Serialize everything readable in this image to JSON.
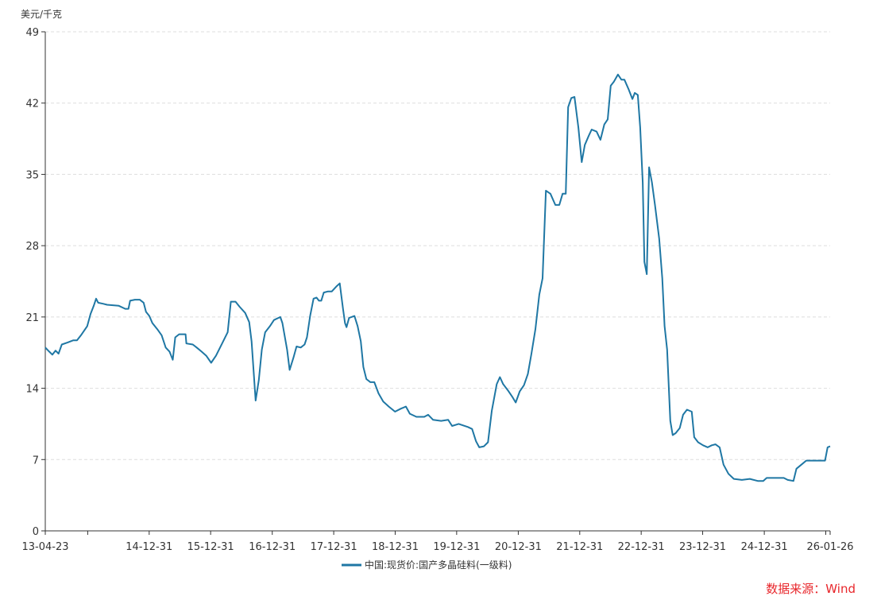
{
  "chart_data": {
    "type": "line",
    "title": "",
    "ylabel": "美元/千克",
    "xlabel": "",
    "ylim": [
      0,
      49
    ],
    "yticks": [
      0,
      7,
      14,
      21,
      28,
      35,
      42,
      49
    ],
    "xlim": [
      "2013-04-23",
      "2026-01-26"
    ],
    "xticks": [
      {
        "date": "2013-04-23",
        "label": "13-04-23"
      },
      {
        "date": "2013-12-31",
        "label": ""
      },
      {
        "date": "2014-12-31",
        "label": "14-12-31"
      },
      {
        "date": "2015-12-31",
        "label": "15-12-31"
      },
      {
        "date": "2016-12-31",
        "label": "16-12-31"
      },
      {
        "date": "2017-12-31",
        "label": "17-12-31"
      },
      {
        "date": "2018-12-31",
        "label": "18-12-31"
      },
      {
        "date": "2019-12-31",
        "label": "19-12-31"
      },
      {
        "date": "2020-12-31",
        "label": "20-12-31"
      },
      {
        "date": "2021-12-31",
        "label": "21-12-31"
      },
      {
        "date": "2022-12-31",
        "label": "22-12-31"
      },
      {
        "date": "2023-12-31",
        "label": "23-12-31"
      },
      {
        "date": "2024-12-31",
        "label": "24-12-31"
      },
      {
        "date": "2025-12-31",
        "label": ""
      },
      {
        "date": "2026-01-26",
        "label": "26-01-26"
      }
    ],
    "grid": "horizontal-dashed",
    "legend_position": "bottom",
    "series": [
      {
        "name": "中国:现货价:国产多晶硅料(一级料)",
        "color": "#1f77a4",
        "points": [
          [
            "2013-04-23",
            18.0
          ],
          [
            "2013-05-16",
            17.6
          ],
          [
            "2013-06-04",
            17.3
          ],
          [
            "2013-06-23",
            17.7
          ],
          [
            "2013-07-11",
            17.4
          ],
          [
            "2013-07-30",
            18.3
          ],
          [
            "2013-09-03",
            18.5
          ],
          [
            "2013-10-05",
            18.7
          ],
          [
            "2013-10-28",
            18.7
          ],
          [
            "2013-11-21",
            19.2
          ],
          [
            "2013-12-28",
            20.1
          ],
          [
            "2014-01-17",
            21.3
          ],
          [
            "2014-02-05",
            22.1
          ],
          [
            "2014-02-19",
            22.8
          ],
          [
            "2014-03-03",
            22.4
          ],
          [
            "2014-04-01",
            22.3
          ],
          [
            "2014-04-25",
            22.2
          ],
          [
            "2014-07-04",
            22.1
          ],
          [
            "2014-08-11",
            21.8
          ],
          [
            "2014-08-30",
            21.8
          ],
          [
            "2014-09-09",
            22.6
          ],
          [
            "2014-10-07",
            22.7
          ],
          [
            "2014-11-05",
            22.7
          ],
          [
            "2014-11-28",
            22.4
          ],
          [
            "2014-12-12",
            21.5
          ],
          [
            "2015-01-01",
            21.1
          ],
          [
            "2015-01-19",
            20.4
          ],
          [
            "2015-02-17",
            19.8
          ],
          [
            "2015-03-15",
            19.2
          ],
          [
            "2015-04-08",
            18.0
          ],
          [
            "2015-05-01",
            17.6
          ],
          [
            "2015-05-20",
            16.8
          ],
          [
            "2015-06-04",
            19.0
          ],
          [
            "2015-06-27",
            19.3
          ],
          [
            "2015-08-04",
            19.3
          ],
          [
            "2015-08-09",
            18.4
          ],
          [
            "2015-09-16",
            18.3
          ],
          [
            "2015-10-09",
            18.0
          ],
          [
            "2015-11-07",
            17.6
          ],
          [
            "2015-12-05",
            17.2
          ],
          [
            "2016-01-03",
            16.5
          ],
          [
            "2016-02-01",
            17.2
          ],
          [
            "2016-03-08",
            18.4
          ],
          [
            "2016-04-10",
            19.5
          ],
          [
            "2016-04-29",
            22.5
          ],
          [
            "2016-05-27",
            22.5
          ],
          [
            "2016-06-20",
            22.0
          ],
          [
            "2016-07-23",
            21.4
          ],
          [
            "2016-08-16",
            20.5
          ],
          [
            "2016-08-30",
            18.6
          ],
          [
            "2016-09-23",
            12.8
          ],
          [
            "2016-10-12",
            14.8
          ],
          [
            "2016-10-30",
            17.8
          ],
          [
            "2016-11-19",
            19.5
          ],
          [
            "2016-12-17",
            20.1
          ],
          [
            "2017-01-10",
            20.7
          ],
          [
            "2017-02-17",
            21.0
          ],
          [
            "2017-03-01",
            20.4
          ],
          [
            "2017-03-29",
            17.8
          ],
          [
            "2017-04-13",
            15.8
          ],
          [
            "2017-05-06",
            17.0
          ],
          [
            "2017-05-24",
            18.1
          ],
          [
            "2017-06-18",
            18.0
          ],
          [
            "2017-07-11",
            18.3
          ],
          [
            "2017-07-25",
            19.0
          ],
          [
            "2017-08-13",
            21.1
          ],
          [
            "2017-09-02",
            22.8
          ],
          [
            "2017-09-20",
            22.9
          ],
          [
            "2017-10-04",
            22.6
          ],
          [
            "2017-10-18",
            22.6
          ],
          [
            "2017-11-02",
            23.4
          ],
          [
            "2017-11-25",
            23.5
          ],
          [
            "2017-12-19",
            23.5
          ],
          [
            "2018-01-16",
            24.0
          ],
          [
            "2018-02-05",
            24.3
          ],
          [
            "2018-02-24",
            21.8
          ],
          [
            "2018-03-08",
            20.4
          ],
          [
            "2018-03-17",
            20.0
          ],
          [
            "2018-04-01",
            20.9
          ],
          [
            "2018-05-03",
            21.1
          ],
          [
            "2018-05-22",
            20.1
          ],
          [
            "2018-06-10",
            18.6
          ],
          [
            "2018-06-25",
            16.1
          ],
          [
            "2018-07-13",
            14.9
          ],
          [
            "2018-08-06",
            14.6
          ],
          [
            "2018-08-29",
            14.6
          ],
          [
            "2018-09-23",
            13.5
          ],
          [
            "2018-10-21",
            12.7
          ],
          [
            "2018-11-23",
            12.2
          ],
          [
            "2018-12-30",
            11.7
          ],
          [
            "2019-02-03",
            12.0
          ],
          [
            "2019-03-05",
            12.2
          ],
          [
            "2019-03-28",
            11.5
          ],
          [
            "2019-05-06",
            11.2
          ],
          [
            "2019-06-22",
            11.2
          ],
          [
            "2019-07-15",
            11.4
          ],
          [
            "2019-08-13",
            10.9
          ],
          [
            "2019-09-30",
            10.8
          ],
          [
            "2019-11-11",
            10.9
          ],
          [
            "2019-12-04",
            10.3
          ],
          [
            "2020-01-12",
            10.5
          ],
          [
            "2020-03-07",
            10.2
          ],
          [
            "2020-04-01",
            10.0
          ],
          [
            "2020-04-24",
            8.8
          ],
          [
            "2020-05-13",
            8.2
          ],
          [
            "2020-06-10",
            8.3
          ],
          [
            "2020-07-04",
            8.7
          ],
          [
            "2020-07-27",
            11.8
          ],
          [
            "2020-08-25",
            14.4
          ],
          [
            "2020-09-13",
            15.1
          ],
          [
            "2020-10-02",
            14.4
          ],
          [
            "2020-10-30",
            13.8
          ],
          [
            "2020-11-28",
            13.1
          ],
          [
            "2020-12-16",
            12.6
          ],
          [
            "2021-01-09",
            13.7
          ],
          [
            "2021-02-03",
            14.3
          ],
          [
            "2021-02-26",
            15.4
          ],
          [
            "2021-03-19",
            17.4
          ],
          [
            "2021-04-12",
            19.8
          ],
          [
            "2021-05-05",
            23.2
          ],
          [
            "2021-05-24",
            24.8
          ],
          [
            "2021-06-13",
            33.4
          ],
          [
            "2021-07-10",
            33.1
          ],
          [
            "2021-08-08",
            32.0
          ],
          [
            "2021-09-01",
            32.0
          ],
          [
            "2021-09-20",
            33.1
          ],
          [
            "2021-10-09",
            33.1
          ],
          [
            "2021-10-23",
            41.6
          ],
          [
            "2021-11-11",
            42.5
          ],
          [
            "2021-11-30",
            42.6
          ],
          [
            "2021-12-23",
            39.6
          ],
          [
            "2022-01-12",
            36.2
          ],
          [
            "2022-01-30",
            37.9
          ],
          [
            "2022-02-23",
            38.8
          ],
          [
            "2022-03-12",
            39.4
          ],
          [
            "2022-04-10",
            39.2
          ],
          [
            "2022-05-03",
            38.4
          ],
          [
            "2022-05-26",
            39.9
          ],
          [
            "2022-06-15",
            40.4
          ],
          [
            "2022-07-03",
            43.7
          ],
          [
            "2022-07-22",
            44.1
          ],
          [
            "2022-08-15",
            44.8
          ],
          [
            "2022-09-04",
            44.3
          ],
          [
            "2022-09-22",
            44.3
          ],
          [
            "2022-10-16",
            43.4
          ],
          [
            "2022-11-09",
            42.4
          ],
          [
            "2022-11-23",
            43.0
          ],
          [
            "2022-12-11",
            42.8
          ],
          [
            "2022-12-25",
            39.6
          ],
          [
            "2023-01-09",
            34.2
          ],
          [
            "2023-01-19",
            26.4
          ],
          [
            "2023-02-02",
            25.2
          ],
          [
            "2023-02-16",
            35.7
          ],
          [
            "2023-03-05",
            34.2
          ],
          [
            "2023-03-23",
            32.0
          ],
          [
            "2023-04-17",
            28.7
          ],
          [
            "2023-05-05",
            24.8
          ],
          [
            "2023-05-19",
            20.1
          ],
          [
            "2023-06-03",
            17.8
          ],
          [
            "2023-06-22",
            10.8
          ],
          [
            "2023-07-06",
            9.4
          ],
          [
            "2023-07-24",
            9.6
          ],
          [
            "2023-08-17",
            10.1
          ],
          [
            "2023-09-06",
            11.4
          ],
          [
            "2023-09-29",
            11.9
          ],
          [
            "2023-10-27",
            11.7
          ],
          [
            "2023-11-11",
            9.2
          ],
          [
            "2023-12-04",
            8.7
          ],
          [
            "2024-01-02",
            8.4
          ],
          [
            "2024-01-30",
            8.2
          ],
          [
            "2024-02-23",
            8.4
          ],
          [
            "2024-03-16",
            8.5
          ],
          [
            "2024-04-10",
            8.2
          ],
          [
            "2024-05-03",
            6.5
          ],
          [
            "2024-06-01",
            5.6
          ],
          [
            "2024-07-03",
            5.1
          ],
          [
            "2024-08-20",
            5.0
          ],
          [
            "2024-10-06",
            5.1
          ],
          [
            "2024-11-22",
            4.9
          ],
          [
            "2024-12-25",
            4.9
          ],
          [
            "2025-01-14",
            5.2
          ],
          [
            "2025-02-25",
            5.2
          ],
          [
            "2025-04-26",
            5.2
          ],
          [
            "2025-05-19",
            5.0
          ],
          [
            "2025-06-22",
            4.9
          ],
          [
            "2025-07-10",
            6.1
          ],
          [
            "2025-08-08",
            6.5
          ],
          [
            "2025-09-06",
            6.9
          ],
          [
            "2025-11-01",
            6.9
          ],
          [
            "2025-12-27",
            6.9
          ],
          [
            "2026-01-11",
            8.2
          ],
          [
            "2026-01-26",
            8.3
          ]
        ]
      }
    ],
    "source": "数据来源：Wind"
  }
}
